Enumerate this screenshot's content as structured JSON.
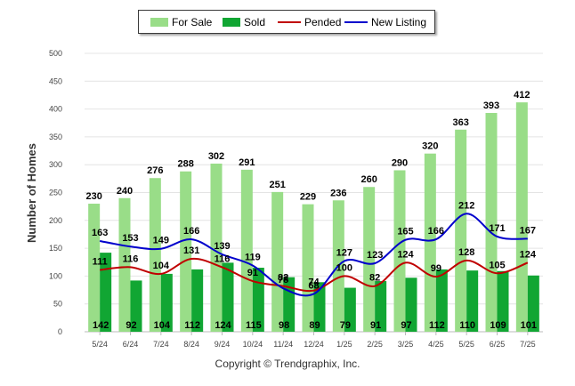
{
  "chart_data": {
    "type": "bar",
    "categories": [
      "5/24",
      "6/24",
      "7/24",
      "8/24",
      "9/24",
      "10/24",
      "11/24",
      "12/24",
      "1/25",
      "2/25",
      "3/25",
      "4/25",
      "5/25",
      "6/25",
      "7/25"
    ],
    "series": [
      {
        "name": "For Sale",
        "kind": "bar",
        "color": "#99dd88",
        "values": [
          230,
          240,
          276,
          288,
          302,
          291,
          251,
          229,
          236,
          260,
          290,
          320,
          363,
          393,
          412
        ]
      },
      {
        "name": "Sold",
        "kind": "bar",
        "color": "#11a633",
        "values": [
          142,
          92,
          104,
          112,
          124,
          115,
          98,
          89,
          79,
          91,
          97,
          112,
          110,
          109,
          101
        ]
      },
      {
        "name": "Pended",
        "kind": "line",
        "color": "#c00000",
        "values": [
          111,
          116,
          104,
          131,
          116,
          91,
          82,
          74,
          100,
          82,
          124,
          99,
          128,
          105,
          124
        ]
      },
      {
        "name": "New Listing",
        "kind": "line",
        "color": "#0000cc",
        "values": [
          163,
          153,
          149,
          166,
          139,
          119,
          78,
          68,
          127,
          123,
          165,
          166,
          212,
          171,
          167
        ]
      }
    ],
    "ylabel": "Number of Homes",
    "ylim": [
      0,
      500
    ],
    "yticks": [
      "0",
      "50",
      "100",
      "150",
      "200",
      "250",
      "300",
      "350",
      "400",
      "450",
      "500"
    ],
    "grid": true,
    "legend_position": "top"
  },
  "copyright": "Copyright © Trendgraphix, Inc."
}
